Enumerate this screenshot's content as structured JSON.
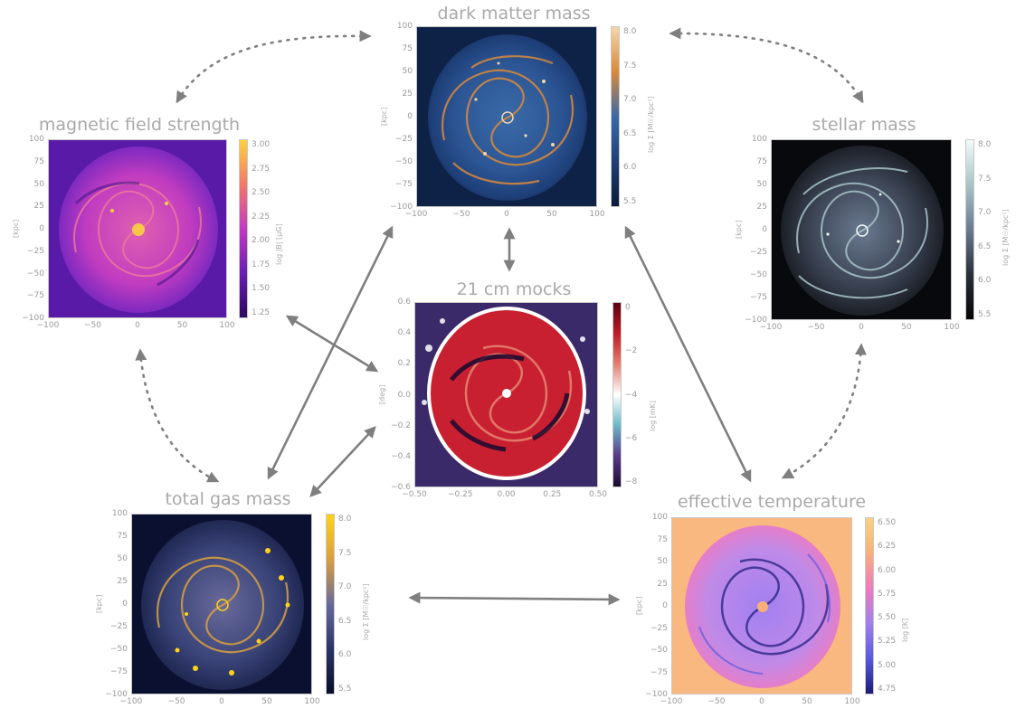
{
  "panels": {
    "dm": {
      "title": "dark matter mass",
      "ylabel": "[kpc]",
      "cbar_label": "log Σ [M☉/kpc²]",
      "xticks": [
        "−100",
        "−50",
        "0",
        "50",
        "100"
      ],
      "yticks": [
        "100",
        "75",
        "50",
        "25",
        "0",
        "−25",
        "−50",
        "−75",
        "−100"
      ],
      "cticks": [
        "8.0",
        "7.5",
        "7.0",
        "6.5",
        "6.0",
        "5.5"
      ]
    },
    "mag": {
      "title": "magnetic field strength",
      "ylabel": "[kpc]",
      "cbar_label": "log |B| [μG]",
      "xticks": [
        "−100",
        "−50",
        "0",
        "50",
        "100"
      ],
      "yticks": [
        "100",
        "75",
        "50",
        "25",
        "0",
        "−25",
        "−50",
        "−75",
        "−100"
      ],
      "cticks": [
        "3.00",
        "2.75",
        "2.50",
        "2.25",
        "2.00",
        "1.75",
        "1.50",
        "1.25"
      ]
    },
    "star": {
      "title": "stellar mass",
      "ylabel": "[kpc]",
      "cbar_label": "log Σ [M☉/kpc²]",
      "xticks": [
        "−100",
        "−50",
        "0",
        "50",
        "100"
      ],
      "yticks": [
        "100",
        "75",
        "50",
        "25",
        "0",
        "−25",
        "−50",
        "−75",
        "−100"
      ],
      "cticks": [
        "8.0",
        "7.5",
        "7.0",
        "6.5",
        "6.0",
        "5.5"
      ]
    },
    "cm": {
      "title": "21 cm mocks",
      "ylabel": "[deg]",
      "cbar_label": "log [mK]",
      "xticks": [
        "−0.50",
        "−0.25",
        "0.00",
        "0.25",
        "0.50"
      ],
      "yticks": [
        "0.6",
        "0.4",
        "0.2",
        "0.0",
        "−0.2",
        "−0.4",
        "−0.6"
      ],
      "cticks": [
        "0",
        "−2",
        "−4",
        "−6",
        "−8"
      ]
    },
    "gas": {
      "title": "total gas mass",
      "ylabel": "[kpc]",
      "cbar_label": "log Σ [M☉/kpc²]",
      "xticks": [
        "−100",
        "−50",
        "0",
        "50",
        "100"
      ],
      "yticks": [
        "100",
        "75",
        "50",
        "25",
        "0",
        "−25",
        "−50",
        "−75",
        "−100"
      ],
      "cticks": [
        "8.0",
        "7.5",
        "7.0",
        "6.5",
        "6.0",
        "5.5"
      ]
    },
    "temp": {
      "title": "effective temperature",
      "ylabel": "[kpc]",
      "cbar_label": "log [K]",
      "xticks": [
        "−100",
        "−50",
        "0",
        "50",
        "100"
      ],
      "yticks": [
        "100",
        "75",
        "50",
        "25",
        "0",
        "−25",
        "−50",
        "−75",
        "−100"
      ],
      "cticks": [
        "6.50",
        "6.25",
        "6.00",
        "5.75",
        "5.50",
        "5.25",
        "5.00",
        "4.75"
      ]
    }
  },
  "colors": {
    "arrow": "#7f7f7f",
    "dm": [
      "#0b1a3a",
      "#1e3f78",
      "#3a6aa8",
      "#d98a3a",
      "#f4d6a8"
    ],
    "mag": [
      "#2a0a5e",
      "#6a1fb0",
      "#c03cc0",
      "#f07a6a",
      "#fbd23c"
    ],
    "star": [
      "#050505",
      "#2a2f3a",
      "#6a7a90",
      "#a8c4c8",
      "#f4fbfb"
    ],
    "cm": [
      "#1a0a30",
      "#5a3a8a",
      "#6ab8c8",
      "#ffffff",
      "#e48070",
      "#c01a28",
      "#5a0010"
    ],
    "gas": [
      "#0a0d2a",
      "#2a3566",
      "#6a6a9a",
      "#d8a040",
      "#ffd21a"
    ],
    "temp": [
      "#1a1a7a",
      "#5a5ae0",
      "#a080f0",
      "#f07ac0",
      "#f8b078",
      "#fbd080"
    ]
  }
}
